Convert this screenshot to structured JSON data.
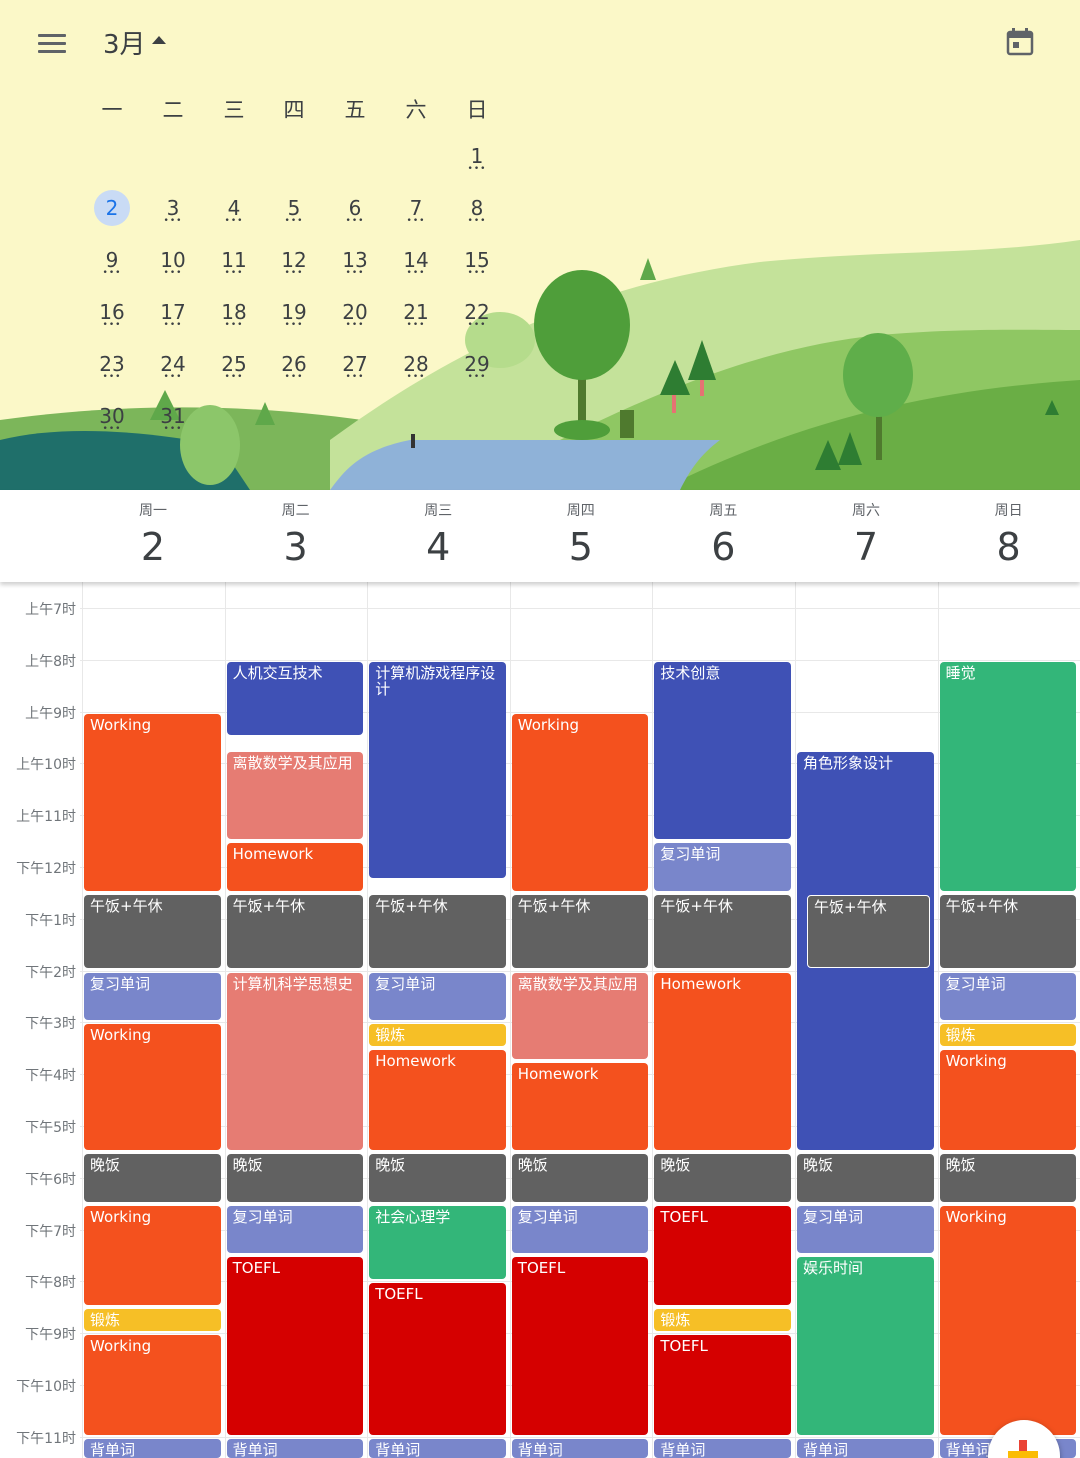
{
  "header": {
    "month": "3月"
  },
  "weekdays": [
    "一",
    "二",
    "三",
    "四",
    "五",
    "六",
    "日"
  ],
  "month_grid": [
    [
      "",
      "",
      "",
      "",
      "",
      "",
      "1"
    ],
    [
      "2",
      "3",
      "4",
      "5",
      "6",
      "7",
      "8"
    ],
    [
      "9",
      "10",
      "11",
      "12",
      "13",
      "14",
      "15"
    ],
    [
      "16",
      "17",
      "18",
      "19",
      "20",
      "21",
      "22"
    ],
    [
      "23",
      "24",
      "25",
      "26",
      "27",
      "28",
      "29"
    ],
    [
      "30",
      "31",
      "",
      "",
      "",
      "",
      ""
    ]
  ],
  "selected_day": "2",
  "week": {
    "day_names": [
      "周一",
      "周二",
      "周三",
      "周四",
      "周五",
      "周六",
      "周日"
    ],
    "dates": [
      "2",
      "3",
      "4",
      "5",
      "6",
      "7",
      "8"
    ]
  },
  "time_labels": [
    "上午7时",
    "上午8时",
    "上午9时",
    "上午10时",
    "上午11时",
    "下午12时",
    "下午1时",
    "下午2时",
    "下午3时",
    "下午4时",
    "下午5时",
    "下午6时",
    "下午7时",
    "下午8时",
    "下午9时",
    "下午10时",
    "下午11时"
  ],
  "colors": {
    "orange": "#f4511e",
    "navy": "#3f51b5",
    "pink": "#e67c73",
    "gray": "#616161",
    "lavender": "#7986cb",
    "yellow": "#f6bf26",
    "green": "#33b679",
    "red": "#d50000"
  },
  "events": [
    {
      "day": 0,
      "start": 9,
      "end": 12.5,
      "title": "Working",
      "color": "orange"
    },
    {
      "day": 0,
      "start": 12.5,
      "end": 14,
      "title": "午饭+午休",
      "color": "gray"
    },
    {
      "day": 0,
      "start": 14,
      "end": 15,
      "title": "复习单词",
      "color": "lavender"
    },
    {
      "day": 0,
      "start": 15,
      "end": 17.5,
      "title": "Working",
      "color": "orange"
    },
    {
      "day": 0,
      "start": 17.5,
      "end": 18.5,
      "title": "晚饭",
      "color": "gray"
    },
    {
      "day": 0,
      "start": 18.5,
      "end": 20.5,
      "title": "Working",
      "color": "orange"
    },
    {
      "day": 0,
      "start": 20.5,
      "end": 21,
      "title": "锻炼",
      "color": "yellow"
    },
    {
      "day": 0,
      "start": 21,
      "end": 23,
      "title": "Working",
      "color": "orange"
    },
    {
      "day": 0,
      "start": 23,
      "end": 24,
      "title": "背单词",
      "color": "lavender"
    },
    {
      "day": 1,
      "start": 8,
      "end": 9.5,
      "title": "人机交互技术",
      "color": "navy"
    },
    {
      "day": 1,
      "start": 9.75,
      "end": 11.5,
      "title": "离散数学及其应用",
      "color": "pink"
    },
    {
      "day": 1,
      "start": 11.5,
      "end": 12.5,
      "title": "Homework",
      "color": "orange"
    },
    {
      "day": 1,
      "start": 12.5,
      "end": 14,
      "title": "午饭+午休",
      "color": "gray"
    },
    {
      "day": 1,
      "start": 14,
      "end": 17.5,
      "title": "计算机科学思想史",
      "color": "pink"
    },
    {
      "day": 1,
      "start": 17.5,
      "end": 18.5,
      "title": "晚饭",
      "color": "gray"
    },
    {
      "day": 1,
      "start": 18.5,
      "end": 19.5,
      "title": "复习单词",
      "color": "lavender"
    },
    {
      "day": 1,
      "start": 19.5,
      "end": 23,
      "title": "TOEFL",
      "color": "red"
    },
    {
      "day": 1,
      "start": 23,
      "end": 24,
      "title": "背单词",
      "color": "lavender"
    },
    {
      "day": 2,
      "start": 8,
      "end": 12.25,
      "title": "计算机游戏程序设计",
      "color": "navy"
    },
    {
      "day": 2,
      "start": 12.5,
      "end": 14,
      "title": "午饭+午休",
      "color": "gray"
    },
    {
      "day": 2,
      "start": 14,
      "end": 15,
      "title": "复习单词",
      "color": "lavender"
    },
    {
      "day": 2,
      "start": 15,
      "end": 15.5,
      "title": "锻炼",
      "color": "yellow"
    },
    {
      "day": 2,
      "start": 15.5,
      "end": 17.5,
      "title": "Homework",
      "color": "orange"
    },
    {
      "day": 2,
      "start": 17.5,
      "end": 18.5,
      "title": "晚饭",
      "color": "gray"
    },
    {
      "day": 2,
      "start": 18.5,
      "end": 20,
      "title": "社会心理学",
      "color": "green"
    },
    {
      "day": 2,
      "start": 20,
      "end": 23,
      "title": "TOEFL",
      "color": "red"
    },
    {
      "day": 2,
      "start": 23,
      "end": 24,
      "title": "背单词",
      "color": "lavender"
    },
    {
      "day": 3,
      "start": 9,
      "end": 12.5,
      "title": "Working",
      "color": "orange"
    },
    {
      "day": 3,
      "start": 12.5,
      "end": 14,
      "title": "午饭+午休",
      "color": "gray"
    },
    {
      "day": 3,
      "start": 14,
      "end": 15.75,
      "title": "离散数学及其应用",
      "color": "pink"
    },
    {
      "day": 3,
      "start": 15.75,
      "end": 17.5,
      "title": "Homework",
      "color": "orange"
    },
    {
      "day": 3,
      "start": 17.5,
      "end": 18.5,
      "title": "晚饭",
      "color": "gray"
    },
    {
      "day": 3,
      "start": 18.5,
      "end": 19.5,
      "title": "复习单词",
      "color": "lavender"
    },
    {
      "day": 3,
      "start": 19.5,
      "end": 23,
      "title": "TOEFL",
      "color": "red"
    },
    {
      "day": 3,
      "start": 23,
      "end": 24,
      "title": "背单词",
      "color": "lavender"
    },
    {
      "day": 4,
      "start": 8,
      "end": 11.5,
      "title": "技术创意",
      "color": "navy"
    },
    {
      "day": 4,
      "start": 11.5,
      "end": 12.5,
      "title": "复习单词",
      "color": "lavender"
    },
    {
      "day": 4,
      "start": 12.5,
      "end": 14,
      "title": "午饭+午休",
      "color": "gray"
    },
    {
      "day": 4,
      "start": 14,
      "end": 17.5,
      "title": "Homework",
      "color": "orange"
    },
    {
      "day": 4,
      "start": 17.5,
      "end": 18.5,
      "title": "晚饭",
      "color": "gray"
    },
    {
      "day": 4,
      "start": 18.5,
      "end": 20.5,
      "title": "TOEFL",
      "color": "red"
    },
    {
      "day": 4,
      "start": 20.5,
      "end": 21,
      "title": "锻炼",
      "color": "yellow"
    },
    {
      "day": 4,
      "start": 21,
      "end": 23,
      "title": "TOEFL",
      "color": "red"
    },
    {
      "day": 4,
      "start": 23,
      "end": 24,
      "title": "背单词",
      "color": "lavender"
    },
    {
      "day": 5,
      "start": 9.75,
      "end": 17.5,
      "title": "角色形象设计",
      "color": "navy"
    },
    {
      "day": 5,
      "start": 12.5,
      "end": 14,
      "title": "午饭+午休",
      "color": "gray",
      "outline": true
    },
    {
      "day": 5,
      "start": 17.5,
      "end": 18.5,
      "title": "晚饭",
      "color": "gray"
    },
    {
      "day": 5,
      "start": 18.5,
      "end": 19.5,
      "title": "复习单词",
      "color": "lavender"
    },
    {
      "day": 5,
      "start": 19.5,
      "end": 23,
      "title": "娱乐时间",
      "color": "green"
    },
    {
      "day": 5,
      "start": 23,
      "end": 24,
      "title": "背单词",
      "color": "lavender"
    },
    {
      "day": 6,
      "start": 8,
      "end": 12.5,
      "title": "睡觉",
      "color": "green"
    },
    {
      "day": 6,
      "start": 12.5,
      "end": 14,
      "title": "午饭+午休",
      "color": "gray"
    },
    {
      "day": 6,
      "start": 14,
      "end": 15,
      "title": "复习单词",
      "color": "lavender"
    },
    {
      "day": 6,
      "start": 15,
      "end": 15.5,
      "title": "锻炼",
      "color": "yellow"
    },
    {
      "day": 6,
      "start": 15.5,
      "end": 17.5,
      "title": "Working",
      "color": "orange"
    },
    {
      "day": 6,
      "start": 17.5,
      "end": 18.5,
      "title": "晚饭",
      "color": "gray"
    },
    {
      "day": 6,
      "start": 18.5,
      "end": 23,
      "title": "Working",
      "color": "orange"
    },
    {
      "day": 6,
      "start": 23,
      "end": 24,
      "title": "背单词",
      "color": "lavender"
    }
  ]
}
